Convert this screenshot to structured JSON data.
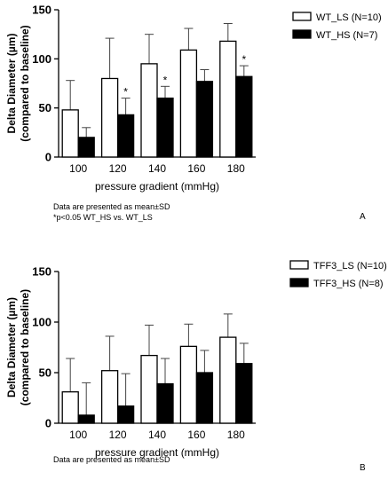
{
  "chart_data": [
    {
      "type": "bar",
      "panel_label": "A",
      "categories": [
        "100",
        "120",
        "140",
        "160",
        "180"
      ],
      "xlabel": "pressure gradient (mmHg)",
      "ylabel": "Delta Diameter (µm)",
      "ylabel2": "(compared to baseline)",
      "ylim": [
        0,
        150
      ],
      "yticks": [
        "0",
        "50",
        "100",
        "150"
      ],
      "error_type": "SD",
      "series": [
        {
          "name": "WT_LS (N=10)",
          "fill": "#ffffff",
          "values": [
            48,
            80,
            95,
            109,
            118
          ],
          "errors": [
            30,
            41,
            30,
            22,
            18
          ]
        },
        {
          "name": "WT_HS (N=7)",
          "fill": "#000000",
          "values": [
            20,
            43,
            60,
            77,
            82
          ],
          "errors": [
            10,
            17,
            12,
            12,
            11
          ]
        }
      ],
      "significance": [
        {
          "category": "120",
          "series": 1,
          "marker": "*"
        },
        {
          "category": "140",
          "series": 1,
          "marker": "*"
        },
        {
          "category": "180",
          "series": 1,
          "marker": "*"
        }
      ],
      "notes": [
        "Data are presented as mean±SD",
        "*p<0.05 WT_HS vs. WT_LS"
      ]
    },
    {
      "type": "bar",
      "panel_label": "B",
      "categories": [
        "100",
        "120",
        "140",
        "160",
        "180"
      ],
      "xlabel": "pressure gradient (mmHg)",
      "ylabel": "Delta Diameter (µm)",
      "ylabel2": "(compared to baseline)",
      "ylim": [
        0,
        150
      ],
      "yticks": [
        "0",
        "50",
        "100",
        "150"
      ],
      "error_type": "SD",
      "series": [
        {
          "name": "TFF3_LS (N=10)",
          "fill": "#ffffff",
          "values": [
            31,
            52,
            67,
            76,
            85
          ],
          "errors": [
            33,
            34,
            30,
            22,
            23
          ]
        },
        {
          "name": "TFF3_HS (N=8)",
          "fill": "#000000",
          "values": [
            8,
            17,
            39,
            50,
            59
          ],
          "errors": [
            32,
            32,
            25,
            22,
            20
          ]
        }
      ],
      "significance": [],
      "notes": [
        "Data are presented as mean±SD"
      ]
    }
  ]
}
